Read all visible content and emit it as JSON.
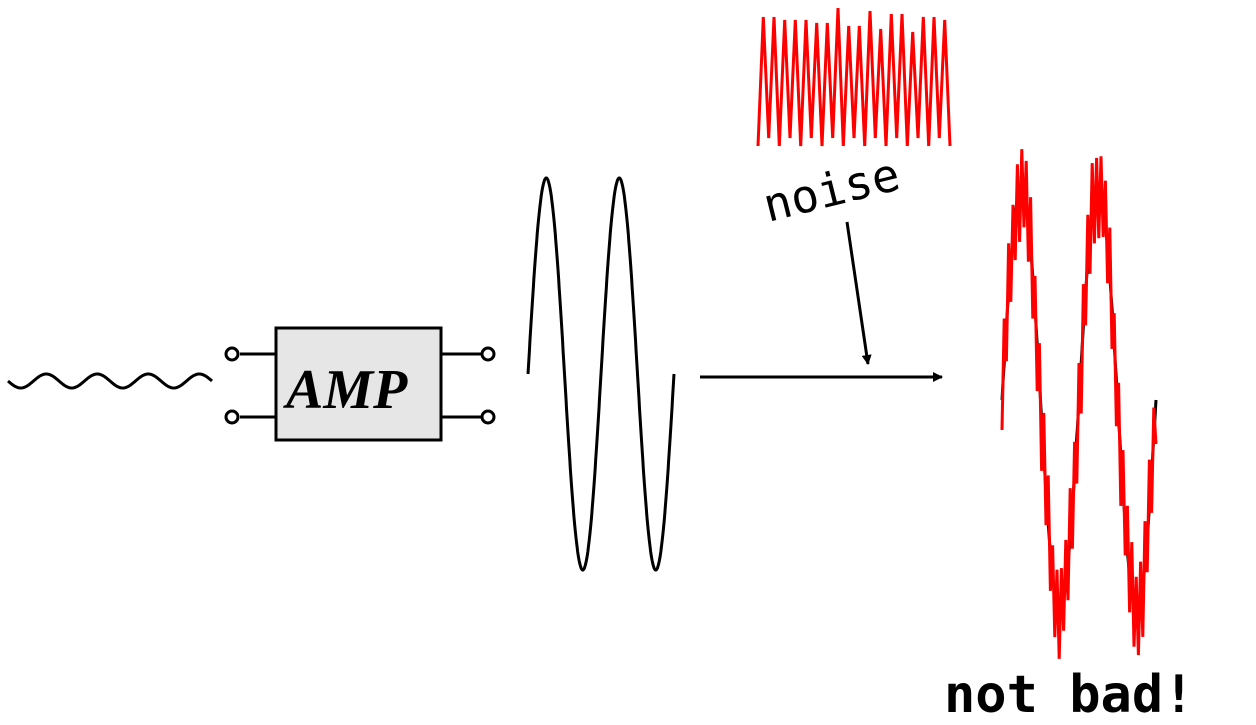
{
  "amplifier": {
    "label": "AMP",
    "fill": "#e6e6e6"
  },
  "noise": {
    "label": "noise",
    "color": "#ff0000"
  },
  "verdict": {
    "label": "not bad!"
  },
  "signal_color": "#000000"
}
